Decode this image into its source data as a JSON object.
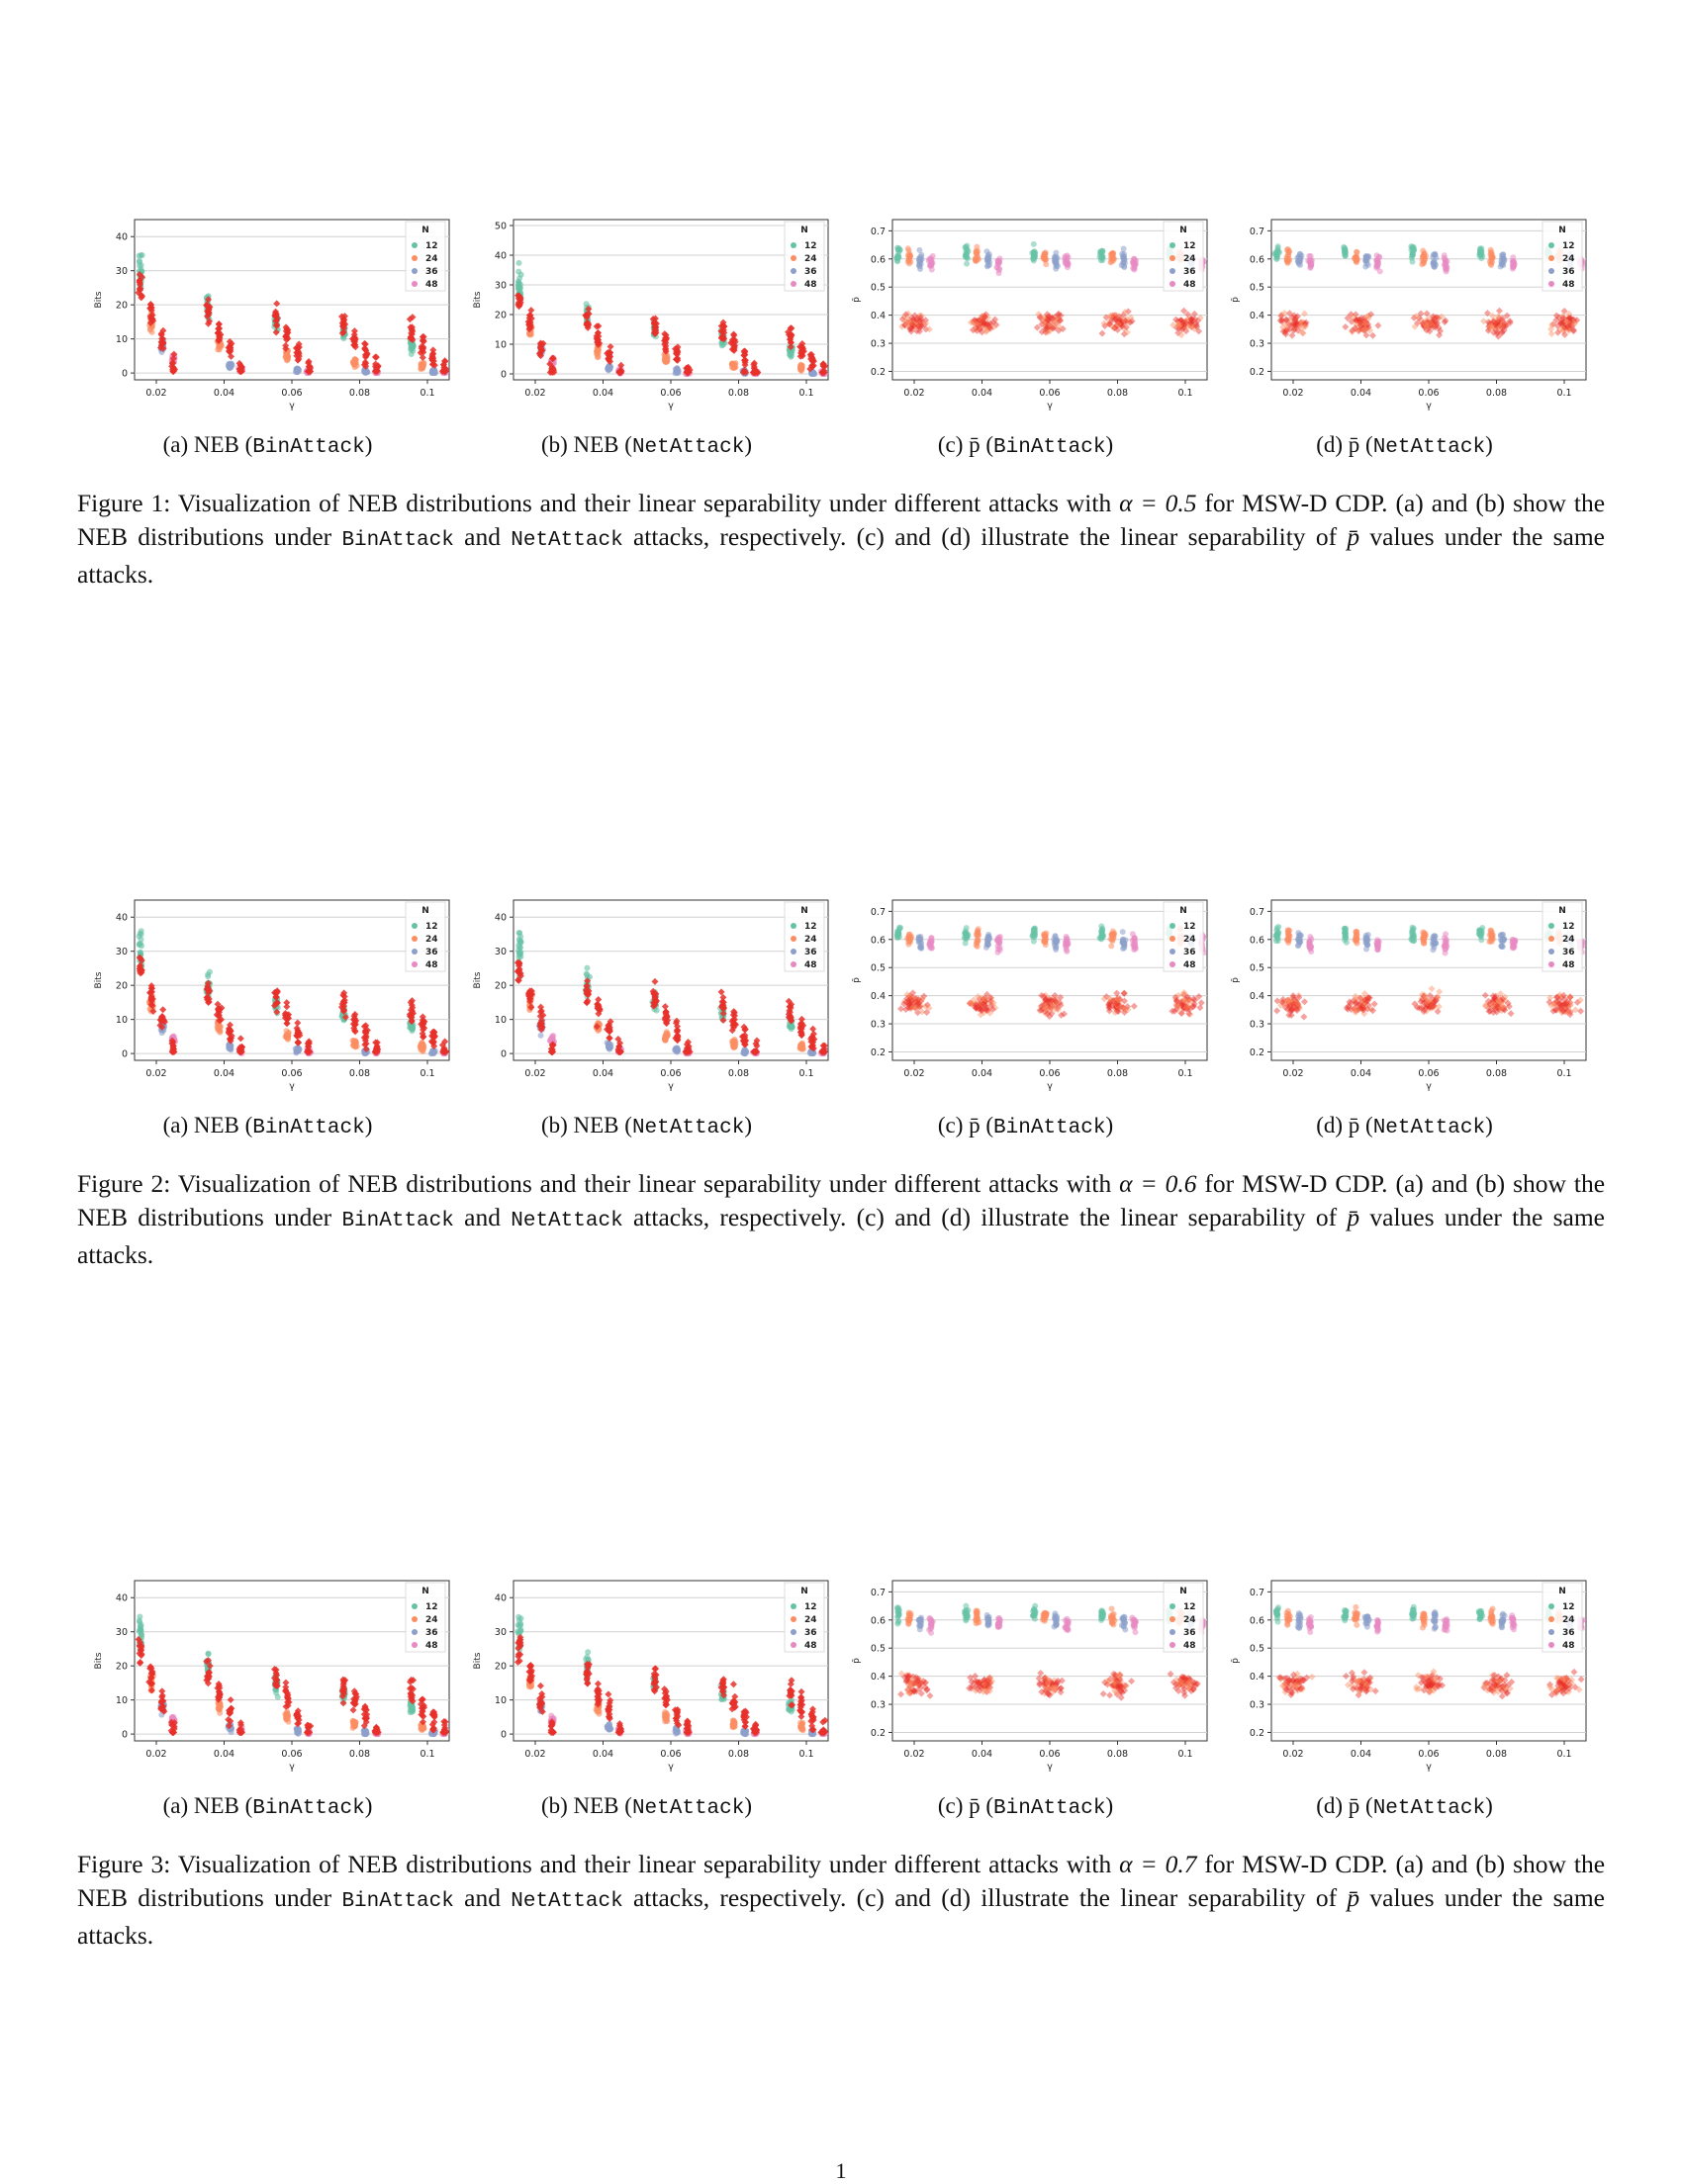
{
  "figures": [
    {
      "number": "Figure 1:",
      "alpha": "0.5",
      "caption_intro": "Visualization of NEB distributions and their linear separability under different attacks with",
      "caption_alpha_suffix": "for MSW-D CDP. (a) and (b) show the NEB distributions under",
      "bin_attack": "BinAttack",
      "and_word": "and",
      "net_attack": "NetAttack",
      "caption_mid": "attacks, respectively. (c) and (d) illustrate the linear separability of",
      "caption_end": "values under the same attacks.",
      "subcaptions": {
        "a_prefix": "(a) NEB (",
        "b_prefix": "(b) NEB (",
        "c_prefix": "(c)",
        "d_prefix": "(d)",
        "close": ")",
        "pbar": "p̄ ("
      }
    },
    {
      "number": "Figure 2:",
      "alpha": "0.6",
      "caption_intro": "Visualization of NEB distributions and their linear separability under different attacks with",
      "caption_alpha_suffix": "for MSW-D CDP. (a) and (b) show the NEB distributions under",
      "bin_attack": "BinAttack",
      "and_word": "and",
      "net_attack": "NetAttack",
      "caption_mid": "attacks, respectively. (c) and (d) illustrate the linear separability of",
      "caption_end": "values under the same attacks.",
      "subcaptions": {
        "a_prefix": "(a) NEB (",
        "b_prefix": "(b) NEB (",
        "c_prefix": "(c)",
        "d_prefix": "(d)",
        "close": ")",
        "pbar": "p̄ ("
      }
    },
    {
      "number": "Figure 3:",
      "alpha": "0.7",
      "caption_intro": "Visualization of NEB distributions and their linear separability under different attacks with",
      "caption_alpha_suffix": "for MSW-D CDP. (a) and (b) show the NEB distributions under",
      "bin_attack": "BinAttack",
      "and_word": "and",
      "net_attack": "NetAttack",
      "caption_mid": "attacks, respectively. (c) and (d) illustrate the linear separability of",
      "caption_end": "values under the same attacks.",
      "subcaptions": {
        "a_prefix": "(a) NEB (",
        "b_prefix": "(b) NEB (",
        "c_prefix": "(c)",
        "d_prefix": "(d)",
        "close": ")",
        "pbar": "p̄ ("
      }
    }
  ],
  "page_number": "1",
  "chart_data": [
    {
      "type": "scatter",
      "panel": "NEB",
      "xlabel": "γ",
      "ylabel": "Bits",
      "x_ticks": [
        "0.02",
        "0.04",
        "0.06",
        "0.08",
        "0.1"
      ],
      "y_ticks_fig1_a": [
        "0",
        "10",
        "20",
        "30",
        "40"
      ],
      "y_ticks_fig1_b": [
        "0",
        "10",
        "20",
        "30",
        "40",
        "50"
      ],
      "ylim_a": [
        -2,
        45
      ],
      "ylim_b": [
        -2,
        52
      ],
      "legend_title": "N",
      "legend_entries": [
        "12",
        "24",
        "36",
        "48"
      ],
      "legend_position": "top-right",
      "colors": {
        "12": "#66c2a5",
        "24": "#fc8d62",
        "36": "#8da0cb",
        "48": "#e78ac3",
        "attack": "#e8302a"
      },
      "series_medians": [
        {
          "gamma": "0.02",
          "12": 30,
          "24": 15,
          "36": 8,
          "48": 4,
          "attack_center": 25
        },
        {
          "gamma": "0.04",
          "12": 20,
          "24": 8,
          "36": 2,
          "48": 1,
          "attack_center": 18
        },
        {
          "gamma": "0.06",
          "12": 15,
          "24": 5,
          "36": 1,
          "48": 0.5,
          "attack_center": 16
        },
        {
          "gamma": "0.08",
          "12": 12,
          "24": 3,
          "36": 0.5,
          "48": 0.3,
          "attack_center": 14
        },
        {
          "gamma": "0.1",
          "12": 8,
          "24": 2,
          "36": 0.4,
          "48": 0.2,
          "attack_center": 12
        }
      ]
    },
    {
      "type": "scatter",
      "panel": "p̄",
      "xlabel": "γ",
      "ylabel": "p̄",
      "x_ticks": [
        "0.02",
        "0.04",
        "0.06",
        "0.08",
        "0.1"
      ],
      "y_ticks_c": [
        "0.2",
        "0.3",
        "0.4",
        "0.5",
        "0.6",
        "0.7"
      ],
      "ylim": [
        0.17,
        0.74
      ],
      "legend_title": "N",
      "legend_entries": [
        "12",
        "24",
        "36",
        "48"
      ],
      "legend_position": "top-right",
      "upper_cluster_center": 0.6,
      "lower_cluster_center": 0.37
    }
  ]
}
